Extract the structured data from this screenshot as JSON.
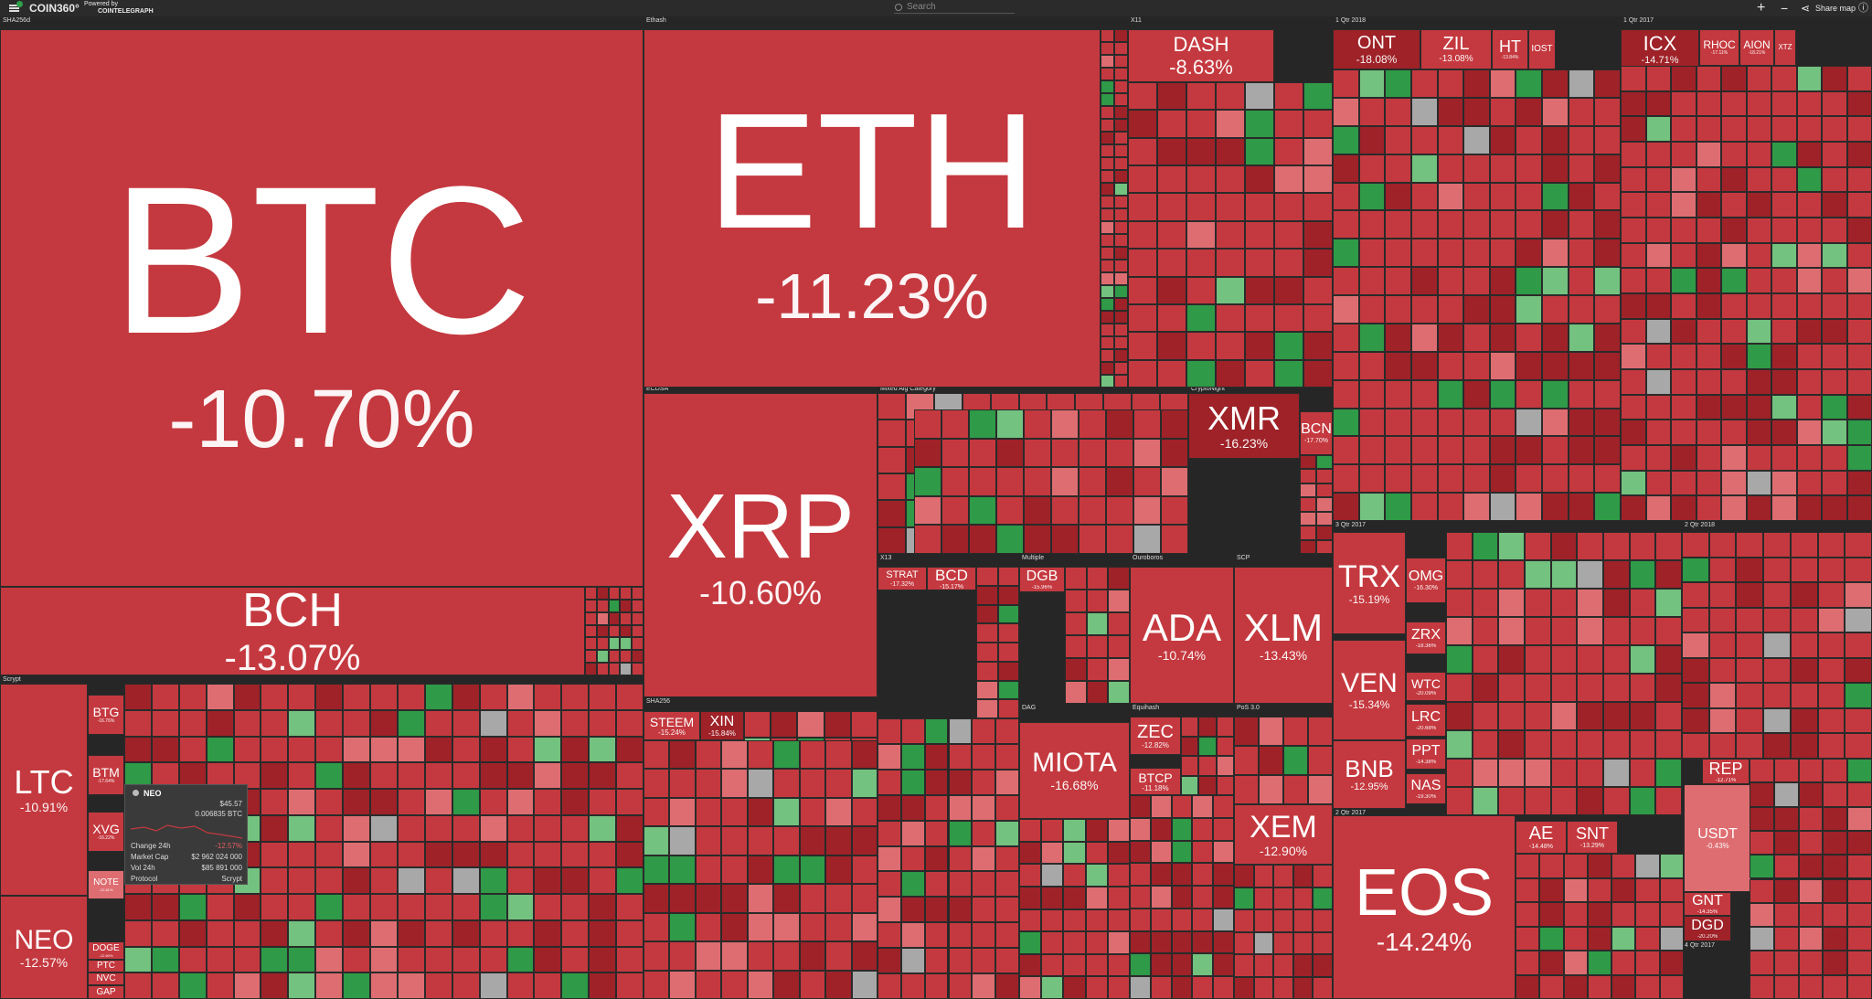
{
  "topbar": {
    "logo": "COIN360°",
    "powered_by": "Powered by",
    "powered_brand": "COINTELEGRAPH",
    "search_placeholder": "Search",
    "share_label": "Share map"
  },
  "colors": {
    "red": "#c4393f",
    "red_dark": "#9e2228",
    "red_light": "#de6d71",
    "green": "#2f9a47",
    "green_light": "#73c27f",
    "grey": "#a8a8a8"
  },
  "groups": [
    {
      "label": "SHA256d"
    },
    {
      "label": "Ethash"
    },
    {
      "label": "X11"
    },
    {
      "label": "1 Qtr 2018"
    },
    {
      "label": "1 Qtr 2017"
    },
    {
      "label": "ECDSA"
    },
    {
      "label": "Mixed Alg Category"
    },
    {
      "label": "CryptoNight"
    },
    {
      "label": "Scrypt"
    },
    {
      "label": "SHA256"
    },
    {
      "label": "X13"
    },
    {
      "label": "Multiple"
    },
    {
      "label": "Ouroboros"
    },
    {
      "label": "SCP"
    },
    {
      "label": "3 Qtr 2017"
    },
    {
      "label": "2 Qtr 2018"
    },
    {
      "label": "PoS"
    },
    {
      "label": "DAG"
    },
    {
      "label": "Equihash"
    },
    {
      "label": "PoS 3.0"
    },
    {
      "label": "NeoScrypt"
    },
    {
      "label": "Apostille"
    },
    {
      "label": "N/A"
    },
    {
      "label": "DPoS"
    },
    {
      "label": "Blake 256"
    },
    {
      "label": "Lyra2RE"
    },
    {
      "label": "Dagger"
    },
    {
      "label": "Quark"
    },
    {
      "label": "X15"
    },
    {
      "label": "Groestl"
    },
    {
      "label": "QuBit"
    },
    {
      "label": "Leased POS"
    },
    {
      "label": "SHA512"
    },
    {
      "label": "NIST5"
    },
    {
      "label": "2 Qtr 2017"
    },
    {
      "label": "4 Qtr 2016"
    },
    {
      "label": "4 Qtr 2017"
    }
  ],
  "coins": [
    {
      "sym": "BTC",
      "chg": "-10.70%"
    },
    {
      "sym": "ETH",
      "chg": "-11.23%"
    },
    {
      "sym": "BCH",
      "chg": "-13.07%"
    },
    {
      "sym": "XRP",
      "chg": "-10.60%"
    },
    {
      "sym": "LTC",
      "chg": "-10.91%"
    },
    {
      "sym": "NEO",
      "chg": "-12.57%"
    },
    {
      "sym": "DASH",
      "chg": "-8.63%"
    },
    {
      "sym": "ONT",
      "chg": "-18.08%"
    },
    {
      "sym": "ZIL",
      "chg": "-13.08%"
    },
    {
      "sym": "ICX",
      "chg": "-14.71%"
    },
    {
      "sym": "XMR",
      "chg": "-16.23%"
    },
    {
      "sym": "BCN",
      "chg": "-17.70%"
    },
    {
      "sym": "SC",
      "chg": ""
    },
    {
      "sym": "STEEM",
      "chg": "-15.24%"
    },
    {
      "sym": "XIN",
      "chg": "-15.84%"
    },
    {
      "sym": "STRAT",
      "chg": "-17.32%"
    },
    {
      "sym": "BCD",
      "chg": "-15.17%"
    },
    {
      "sym": "DGB",
      "chg": "-15.96%"
    },
    {
      "sym": "ADA",
      "chg": "-10.74%"
    },
    {
      "sym": "XLM",
      "chg": "-13.43%"
    },
    {
      "sym": "MIOTA",
      "chg": "-16.68%"
    },
    {
      "sym": "ZEC",
      "chg": "-12.82%"
    },
    {
      "sym": "BTCP",
      "chg": "-11.18%"
    },
    {
      "sym": "XEM",
      "chg": "-12.90%"
    },
    {
      "sym": "TRX",
      "chg": "-15.19%"
    },
    {
      "sym": "VEN",
      "chg": "-15.34%"
    },
    {
      "sym": "BNB",
      "chg": "-12.95%"
    },
    {
      "sym": "EOS",
      "chg": "-14.24%"
    },
    {
      "sym": "OMG",
      "chg": "-16.30%"
    },
    {
      "sym": "ZRX",
      "chg": "-18.36%"
    },
    {
      "sym": "WTC",
      "chg": "-20.09%"
    },
    {
      "sym": "LRC",
      "chg": "-20.68%"
    },
    {
      "sym": "PPT",
      "chg": "-14.38%"
    },
    {
      "sym": "NAS",
      "chg": "-19.30%"
    },
    {
      "sym": "AE",
      "chg": "-14.48%"
    },
    {
      "sym": "SNT",
      "chg": "-13.29%"
    },
    {
      "sym": "REP",
      "chg": "-12.71%"
    },
    {
      "sym": "USDT",
      "chg": "-0.43%"
    },
    {
      "sym": "GNT",
      "chg": "-14.35%"
    },
    {
      "sym": "DGD",
      "chg": "-20.20%"
    },
    {
      "sym": "BTG",
      "chg": "-16.76%"
    },
    {
      "sym": "BTM",
      "chg": "-17.64%"
    },
    {
      "sym": "XVG",
      "chg": "-16.22%"
    },
    {
      "sym": "DOGE",
      "chg": "-12.60%"
    },
    {
      "sym": "NOTE",
      "chg": "-12.81%"
    },
    {
      "sym": "PTC",
      "chg": ""
    },
    {
      "sym": "NVC",
      "chg": ""
    },
    {
      "sym": "GAP",
      "chg": ""
    },
    {
      "sym": "HT",
      "chg": "-13.84%"
    },
    {
      "sym": "IOST",
      "chg": ""
    },
    {
      "sym": "RHOC",
      "chg": "-17.11%"
    },
    {
      "sym": "AION",
      "chg": "-18.21%"
    },
    {
      "sym": "XTZ",
      "chg": ""
    }
  ],
  "tooltip": {
    "name": "NEO",
    "price_usd": "$45.57",
    "price_btc": "0.006835 BTC",
    "rows": [
      {
        "label": "Change 24h",
        "value": "-12.57%"
      },
      {
        "label": "Market Cap",
        "value": "$2 962 024 000"
      },
      {
        "label": "Vol 24h",
        "value": "$85 891 000"
      },
      {
        "label": "Protocol",
        "value": "Scrypt"
      }
    ]
  }
}
